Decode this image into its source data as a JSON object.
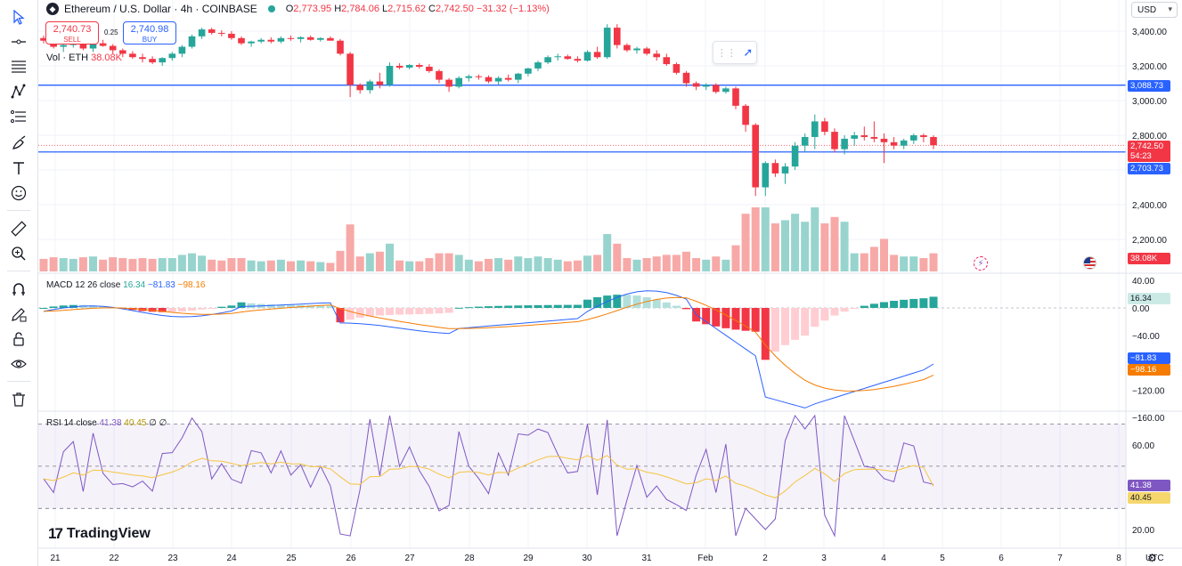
{
  "header": {
    "symbol_title": "Ethereum / U.S. Dollar · 4h · COINBASE",
    "logo_icon": "ethereum-icon",
    "open_label": "O",
    "open": "2,773.95",
    "high_label": "H",
    "high": "2,784.06",
    "low_label": "L",
    "low": "2,715.62",
    "close_label": "C",
    "close": "2,742.50",
    "change": "−31.32 (−1.13%)"
  },
  "trade": {
    "sell_price": "2,740.73",
    "sell_label": "SELL",
    "buy_price": "2,740.98",
    "buy_label": "BUY",
    "spread": "0.25"
  },
  "volume_legend": {
    "label": "Vol · ETH",
    "value": "38.08K"
  },
  "macd_legend": {
    "label": "MACD 12 26 close",
    "hist": "16.34",
    "macd": "−81.83",
    "signal": "−98.16"
  },
  "rsi_legend": {
    "label": "RSI 14 close",
    "rsi": "41.38",
    "ma": "40.45",
    "extra": "∅ ∅"
  },
  "currency": "USD",
  "brand": "TradingView",
  "price_axis": [
    "3,400.00",
    "3,200.00",
    "3,000.00",
    "2,800.00",
    "2,400.00",
    "2,200.00"
  ],
  "price_labels": {
    "upper_line": "3,088.73",
    "last_price": "2,742.50",
    "countdown": "54:23",
    "lower_line": "2,703.73",
    "volume": "38.08K"
  },
  "macd_axis": [
    "40.00",
    "0.00",
    "−40.00",
    "−120.00",
    "−160.00"
  ],
  "macd_labels": {
    "hist": "16.34",
    "macd": "−81.83",
    "signal": "−98.16"
  },
  "rsi_axis": [
    "60.00",
    "20.00"
  ],
  "rsi_labels": {
    "rsi": "41.38",
    "ma": "40.45"
  },
  "time_axis": [
    "21",
    "22",
    "23",
    "24",
    "25",
    "26",
    "27",
    "28",
    "29",
    "30",
    "31",
    "Feb",
    "2",
    "3",
    "4",
    "5",
    "6",
    "7",
    "8"
  ],
  "timezone": "UTC",
  "colors": {
    "up": "#26a69a",
    "down": "#f23645",
    "line": "#2962ff",
    "signal": "#f57c00",
    "rsi": "#7e57c2",
    "rsi_ma": "#f5c542"
  },
  "toolbar_icons": [
    "cursor-icon",
    "crosshair-line-icon",
    "fib-lines-icon",
    "pattern-icon",
    "measure-lines-icon",
    "brush-icon",
    "text-icon",
    "emoji-icon",
    "ruler-icon",
    "zoom-in-icon",
    "magnet-icon",
    "lock-drawing-icon",
    "lock-icon",
    "eye-icon",
    "trash-icon"
  ],
  "chart_data": {
    "type": "candlestick",
    "x_labels": [
      "21",
      "22",
      "23",
      "24",
      "25",
      "26",
      "27",
      "28",
      "29",
      "30",
      "31",
      "Feb",
      "2",
      "3",
      "4",
      "5",
      "6",
      "7",
      "8"
    ],
    "horizontal_lines": [
      3088.73,
      2703.73
    ],
    "candles": [
      [
        3360,
        3375,
        3330,
        3345
      ],
      [
        3345,
        3355,
        3300,
        3310
      ],
      [
        3310,
        3330,
        3280,
        3320
      ],
      [
        3320,
        3350,
        3305,
        3340
      ],
      [
        3340,
        3345,
        3290,
        3300
      ],
      [
        3300,
        3340,
        3280,
        3330
      ],
      [
        3330,
        3350,
        3310,
        3315
      ],
      [
        3315,
        3325,
        3270,
        3290
      ],
      [
        3290,
        3300,
        3250,
        3270
      ],
      [
        3270,
        3285,
        3240,
        3250
      ],
      [
        3250,
        3270,
        3220,
        3240
      ],
      [
        3240,
        3255,
        3210,
        3220
      ],
      [
        3220,
        3250,
        3200,
        3245
      ],
      [
        3245,
        3280,
        3230,
        3270
      ],
      [
        3270,
        3320,
        3250,
        3310
      ],
      [
        3310,
        3380,
        3300,
        3370
      ],
      [
        3370,
        3420,
        3355,
        3410
      ],
      [
        3410,
        3420,
        3380,
        3390
      ],
      [
        3390,
        3405,
        3370,
        3385
      ],
      [
        3385,
        3400,
        3350,
        3360
      ],
      [
        3360,
        3370,
        3320,
        3330
      ],
      [
        3330,
        3345,
        3310,
        3340
      ],
      [
        3340,
        3360,
        3330,
        3350
      ],
      [
        3350,
        3365,
        3330,
        3340
      ],
      [
        3340,
        3370,
        3330,
        3360
      ],
      [
        3360,
        3375,
        3345,
        3355
      ],
      [
        3355,
        3370,
        3335,
        3365
      ],
      [
        3365,
        3375,
        3345,
        3350
      ],
      [
        3350,
        3365,
        3340,
        3360
      ],
      [
        3360,
        3370,
        3350,
        3345
      ],
      [
        3345,
        3355,
        3260,
        3270
      ],
      [
        3270,
        3280,
        3020,
        3090
      ],
      [
        3090,
        3100,
        3040,
        3060
      ],
      [
        3060,
        3120,
        3040,
        3110
      ],
      [
        3110,
        3160,
        3070,
        3090
      ],
      [
        3090,
        3220,
        3080,
        3200
      ],
      [
        3200,
        3215,
        3180,
        3190
      ],
      [
        3190,
        3210,
        3180,
        3205
      ],
      [
        3205,
        3215,
        3185,
        3195
      ],
      [
        3195,
        3210,
        3160,
        3170
      ],
      [
        3170,
        3180,
        3100,
        3120
      ],
      [
        3120,
        3130,
        3050,
        3080
      ],
      [
        3080,
        3140,
        3070,
        3130
      ],
      [
        3130,
        3150,
        3110,
        3140
      ],
      [
        3140,
        3150,
        3120,
        3135
      ],
      [
        3135,
        3145,
        3100,
        3110
      ],
      [
        3110,
        3140,
        3090,
        3130
      ],
      [
        3130,
        3150,
        3110,
        3120
      ],
      [
        3120,
        3160,
        3100,
        3155
      ],
      [
        3155,
        3190,
        3140,
        3185
      ],
      [
        3185,
        3230,
        3170,
        3220
      ],
      [
        3220,
        3260,
        3210,
        3250
      ],
      [
        3250,
        3270,
        3230,
        3255
      ],
      [
        3255,
        3265,
        3235,
        3240
      ],
      [
        3240,
        3255,
        3220,
        3230
      ],
      [
        3230,
        3290,
        3225,
        3280
      ],
      [
        3280,
        3310,
        3240,
        3250
      ],
      [
        3250,
        3440,
        3240,
        3420
      ],
      [
        3420,
        3440,
        3300,
        3320
      ],
      [
        3320,
        3330,
        3280,
        3290
      ],
      [
        3290,
        3310,
        3270,
        3300
      ],
      [
        3300,
        3310,
        3260,
        3270
      ],
      [
        3270,
        3290,
        3230,
        3250
      ],
      [
        3250,
        3270,
        3200,
        3210
      ],
      [
        3210,
        3220,
        3150,
        3160
      ],
      [
        3160,
        3170,
        3080,
        3100
      ],
      [
        3100,
        3110,
        3060,
        3080
      ],
      [
        3080,
        3100,
        3060,
        3090
      ],
      [
        3090,
        3100,
        3040,
        3050
      ],
      [
        3050,
        3080,
        3040,
        3070
      ],
      [
        3070,
        3080,
        2950,
        2970
      ],
      [
        2970,
        2980,
        2820,
        2860
      ],
      [
        2860,
        2870,
        2450,
        2500
      ],
      [
        2500,
        2650,
        2450,
        2640
      ],
      [
        2640,
        2660,
        2560,
        2580
      ],
      [
        2580,
        2640,
        2520,
        2620
      ],
      [
        2620,
        2760,
        2600,
        2740
      ],
      [
        2740,
        2810,
        2700,
        2790
      ],
      [
        2790,
        2920,
        2720,
        2880
      ],
      [
        2880,
        2900,
        2800,
        2820
      ],
      [
        2820,
        2840,
        2700,
        2720
      ],
      [
        2720,
        2800,
        2690,
        2780
      ],
      [
        2780,
        2820,
        2740,
        2800
      ],
      [
        2800,
        2850,
        2770,
        2790
      ],
      [
        2790,
        2880,
        2760,
        2780
      ],
      [
        2780,
        2810,
        2640,
        2760
      ],
      [
        2760,
        2790,
        2720,
        2740
      ],
      [
        2740,
        2780,
        2720,
        2770
      ],
      [
        2770,
        2810,
        2750,
        2800
      ],
      [
        2800,
        2810,
        2760,
        2790
      ],
      [
        2790,
        2800,
        2720,
        2742.5
      ]
    ]
  }
}
